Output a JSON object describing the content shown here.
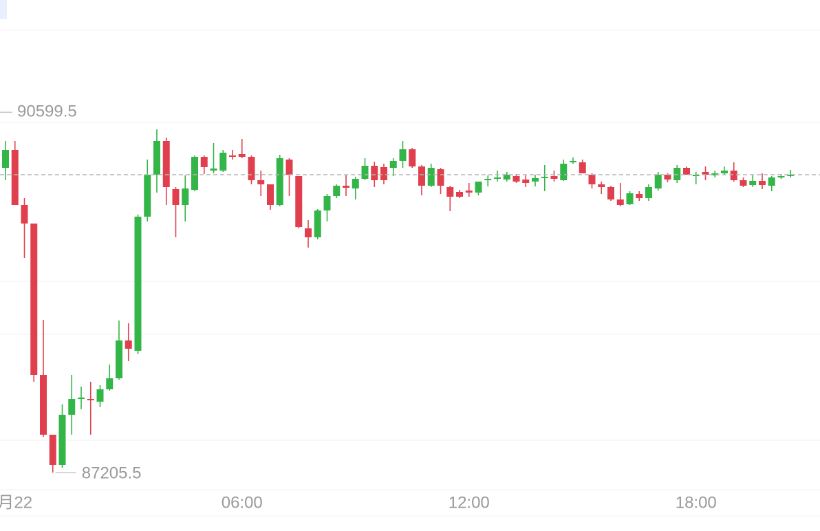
{
  "chart_data": {
    "type": "candlestick",
    "categories": [
      null,
      "月22",
      null,
      null,
      null,
      null,
      null,
      null,
      null,
      null,
      null,
      null,
      null,
      null,
      null,
      null,
      null,
      null,
      null,
      null,
      null,
      null,
      null,
      null,
      null,
      "06:00",
      null,
      null,
      null,
      null,
      null,
      null,
      null,
      null,
      null,
      null,
      null,
      null,
      null,
      null,
      null,
      null,
      null,
      null,
      null,
      null,
      null,
      null,
      null,
      "12:00",
      null,
      null,
      null,
      null,
      null,
      null,
      null,
      null,
      null,
      null,
      null,
      null,
      null,
      null,
      null,
      null,
      null,
      null,
      null,
      null,
      null,
      null,
      null,
      "18:00",
      null,
      null,
      null,
      null,
      null,
      null,
      null,
      null,
      null,
      null
    ],
    "open": [
      90219.2,
      90396,
      89852,
      89668.4,
      88172.4,
      87580.8,
      87281.6,
      87778,
      87934.4,
      87934.4,
      87907.2,
      88029.6,
      88138.4,
      88512.4,
      88410.4,
      89736.4,
      90151.2,
      90484.4,
      90008.4,
      89852,
      90001.6,
      90328,
      90192,
      90192,
      90341.6,
      90355.2,
      90328,
      90096.8,
      90056,
      89852,
      90300.8,
      90137.6,
      89620.8,
      89532.4,
      89797.6,
      89940.4,
      90042.4,
      90015.2,
      90110.4,
      90239.6,
      90226,
      90219.2,
      90287.2,
      90402.8,
      90232.8,
      90042.4,
      90205.6,
      90028.8,
      89981.2,
      89994.8,
      89974.4,
      90096.8,
      90110.4,
      90103.6,
      90137.6,
      90103.6,
      90083.2,
      90117.2,
      90137.6,
      90096.8,
      90273.6,
      90273.6,
      90151.2,
      90056,
      90028.8,
      89906.4,
      89858.8,
      89960.8,
      89920,
      90015.2,
      90151.2,
      90096.8,
      90219.2,
      90137.6,
      90178.4,
      90144.4,
      90164.8,
      90192,
      90096.8,
      90049.2,
      90090,
      90042.4,
      90124,
      90137.6
    ],
    "high": [
      90484.4,
      90484.4,
      89920,
      89668.4,
      88716.4,
      87580.8,
      87880,
      88172.4,
      88056.8,
      88104.4,
      88070.4,
      88274.4,
      88709.6,
      88682.4,
      89756.8,
      90300.8,
      90599.5,
      90518.4,
      90028.8,
      90144.4,
      90341.6,
      90341.6,
      90464,
      90396,
      90396,
      90504.8,
      90341.6,
      90192,
      90056,
      90348.4,
      90314.4,
      90137.6,
      89702.4,
      89811.2,
      89960.8,
      90056,
      90144.4,
      90130.8,
      90314.4,
      90280.4,
      90260,
      90314.4,
      90484.4,
      90416.4,
      90246.4,
      90260,
      90219.2,
      90042.4,
      90001.6,
      90069.6,
      90083.2,
      90144.4,
      90192,
      90178.4,
      90158,
      90144.4,
      90151.2,
      90246.4,
      90192,
      90300.8,
      90321.2,
      90300.8,
      90164.8,
      90083.2,
      90042.4,
      90069.6,
      89988,
      89988,
      90056,
      90178.4,
      90164.8,
      90246.4,
      90232.8,
      90178.4,
      90232.8,
      90192,
      90232.8,
      90273.6,
      90124,
      90144.4,
      90164.8,
      90137.6,
      90158,
      90198.8
    ],
    "low": [
      90096.8,
      89852,
      89328.4,
      88104.4,
      87560.4,
      87205.5,
      87254.4,
      87580.8,
      87832.4,
      87580.8,
      87852.8,
      88016,
      88124.8,
      88308.4,
      88376.4,
      89688.8,
      89974.4,
      89852,
      89532.4,
      89688.8,
      89988,
      90158,
      90164.8,
      90178.4,
      90300.8,
      90314.4,
      90056,
      89940.4,
      89804.4,
      89838.4,
      89940.4,
      89620.8,
      89430.4,
      89512,
      89688.8,
      89920,
      89940.4,
      89906.4,
      90096.8,
      90028.8,
      90056,
      90137.6,
      90219.2,
      90219.2,
      89947.2,
      90028.8,
      89960.8,
      89790.8,
      89920,
      89933.6,
      89947.2,
      90035.6,
      90083.2,
      90083.2,
      90069.6,
      90028.8,
      90035.6,
      89988,
      90083.2,
      90090,
      90260,
      90164.8,
      90015.2,
      89960.8,
      89892.8,
      89838.4,
      89852,
      89892.8,
      89892.8,
      89994.8,
      90076.4,
      90069.6,
      90151.2,
      90056,
      90096.8,
      90124,
      90151.2,
      90083.2,
      90028.8,
      90028.8,
      90008.4,
      89988,
      90110.4,
      90124
    ],
    "close": [
      90396,
      89852,
      89668.4,
      88172.4,
      87580.8,
      87281.6,
      87778,
      87934.4,
      87948,
      87920.8,
      88029.6,
      88138.4,
      88512.4,
      88430.8,
      89736.4,
      90151.2,
      90484.4,
      90028.8,
      89852,
      90015.2,
      90328,
      90226,
      90212.4,
      90368.8,
      90328,
      90328,
      90096.8,
      90056,
      89852,
      90314.4,
      90151.2,
      89634.4,
      89532.4,
      89797.6,
      89940.4,
      90042.4,
      90022,
      90110.4,
      90239.6,
      90096.8,
      90096.8,
      90287.2,
      90402.8,
      90232.8,
      90042.4,
      90219.2,
      90042.4,
      89933.6,
      89933.6,
      89974.4,
      90083.2,
      90110.4,
      90124,
      90151.2,
      90083.2,
      90069.6,
      90117.2,
      90130.8,
      90110.4,
      90260,
      90287.2,
      90164.8,
      90056,
      90028.8,
      89906.4,
      89852,
      89967.6,
      89920,
      90028.8,
      90151.2,
      90103.6,
      90219.2,
      90151.2,
      90151.2,
      90151.2,
      90164.8,
      90192,
      90096.8,
      90042.4,
      90090,
      90049.2,
      90124,
      90137.6,
      90151.2
    ],
    "up_color": "#33b548",
    "down_color": "#e0404e",
    "ylim": [
      87050.4,
      91579.2
    ]
  }
}
